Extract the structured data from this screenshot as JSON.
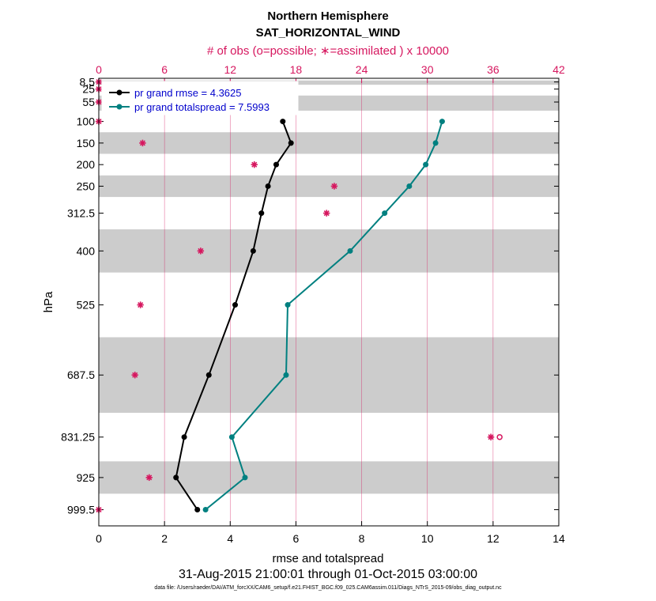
{
  "chart_data": {
    "type": "line",
    "title": "Northern Hemisphere",
    "subtitle": "SAT_HORIZONTAL_WIND",
    "top_axis_label": "# of obs (o=possible; ∗=assimilated ) x 10000",
    "xlabel": "rmse and totalspread",
    "ylabel": "hPa",
    "date_range": "31-Aug-2015 21:00:01 through 01-Oct-2015 03:00:00",
    "data_file": "data file: /Users/raeder/DAI/ATM_forcXX/CAM6_setup/f.e21.FHIST_BGC.f09_025.CAM6assim.011/Diags_NTrS_2015-09/obs_diag_output.nc",
    "xlim": [
      0,
      14
    ],
    "xticks": [
      "0",
      "2",
      "4",
      "6",
      "8",
      "10",
      "12",
      "14"
    ],
    "top_xlim": [
      0,
      42
    ],
    "top_xticks": [
      "0",
      "6",
      "12",
      "18",
      "24",
      "30",
      "36",
      "42"
    ],
    "levels": [
      8.5,
      25,
      55,
      100,
      150,
      200,
      250,
      312.5,
      400,
      525,
      687.5,
      831.25,
      925,
      999.5
    ],
    "level_labels": [
      "8.5",
      "25",
      "55",
      "100",
      "150",
      "200",
      "250",
      "312.5",
      "400",
      "525",
      "687.5",
      "831.25",
      "925",
      "999.5"
    ],
    "layer_edges": [
      3,
      5,
      15,
      40,
      75,
      125,
      175,
      225,
      275,
      350,
      450,
      600,
      775,
      887.5,
      962.5,
      1025
    ],
    "series": [
      {
        "name": "pr grand rmse",
        "legend_label": "pr grand rmse = 4.3625",
        "color": "#000000",
        "levels": [
          100,
          150,
          200,
          250,
          312.5,
          400,
          525,
          687.5,
          831.25,
          925,
          999.5
        ],
        "values": [
          5.6,
          5.85,
          5.4,
          5.15,
          4.95,
          4.7,
          4.15,
          3.35,
          2.6,
          2.35,
          3.0
        ]
      },
      {
        "name": "pr grand totalspread",
        "legend_label": "pr grand totalspread = 7.5993",
        "color": "#008080",
        "levels": [
          100,
          150,
          200,
          250,
          312.5,
          400,
          525,
          687.5,
          831.25,
          925,
          999.5
        ],
        "values": [
          10.45,
          10.25,
          9.95,
          9.45,
          8.7,
          7.65,
          5.75,
          5.7,
          4.05,
          4.45,
          3.25
        ]
      }
    ],
    "obs_counts_x10000": {
      "color": "#d6175f",
      "levels": [
        8.5,
        25,
        55,
        100,
        150,
        200,
        250,
        312.5,
        400,
        525,
        687.5,
        831.25,
        925,
        999.5
      ],
      "assimilated": [
        0,
        0,
        0,
        0,
        4.0,
        14.2,
        21.5,
        20.8,
        9.3,
        3.8,
        3.3,
        35.8,
        4.6,
        0
      ],
      "possible_only": [
        null,
        null,
        null,
        null,
        null,
        null,
        null,
        null,
        null,
        null,
        null,
        36.6,
        null,
        null
      ]
    }
  }
}
